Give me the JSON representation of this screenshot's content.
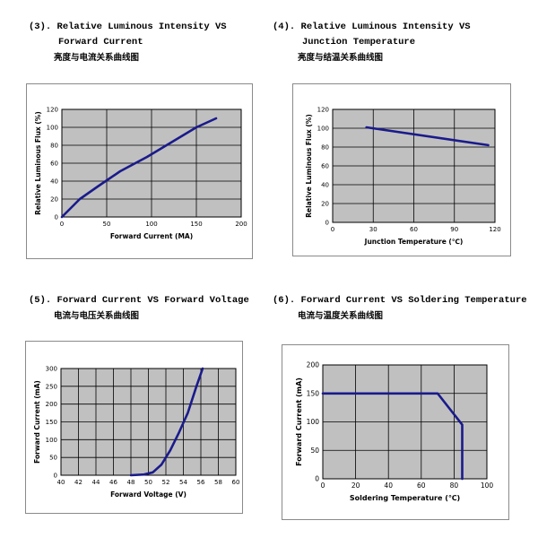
{
  "charts_meta": [
    {
      "number": "(3)",
      "title_line1": "Relative Luminous Intensity VS",
      "title_line2": "Forward Current",
      "title_cn": "亮度与电流关系曲线图"
    },
    {
      "number": "(4)",
      "title_line1": "Relative Luminous Intensity VS",
      "title_line2": "Junction Temperature",
      "title_cn": "亮度与结温关系曲线图"
    },
    {
      "number": "(5)",
      "title_line1": "Forward Current VS Forward Voltage",
      "title_cn": "电流与电压关系曲线图"
    },
    {
      "number": "(6)",
      "title_line1": "Forward Current VS Soldering Temperature",
      "title_cn": "电流与温度关系曲线图"
    }
  ],
  "colors": {
    "plot_bg": "#c0c0c0",
    "line": "#1a1a8c",
    "grid": "#000000"
  },
  "chart_data": [
    {
      "type": "line",
      "title": "Relative Luminous Intensity VS Forward Current",
      "xlabel": "Forward Current (MA)",
      "ylabel": "Relative Luminous Flux (%)",
      "xlim": [
        0,
        200
      ],
      "ylim": [
        0,
        120
      ],
      "xticks": [
        0,
        50,
        100,
        150,
        200
      ],
      "yticks": [
        0,
        20,
        40,
        60,
        80,
        100,
        120
      ],
      "x": [
        0,
        20,
        40,
        65,
        95,
        125,
        150,
        172
      ],
      "y": [
        0,
        20,
        34,
        51,
        67,
        85,
        100,
        110
      ]
    },
    {
      "type": "line",
      "title": "Relative Luminous Intensity VS Junction Temperature",
      "xlabel": "Junction Temperature (℃)",
      "ylabel": "Relative Luminous Flux (%)",
      "xlim": [
        0,
        120
      ],
      "ylim": [
        0,
        120
      ],
      "xticks": [
        0,
        30,
        60,
        90,
        120
      ],
      "xtick_labels": [
        "0",
        "30",
        "60",
        "90",
        "120"
      ],
      "yticks": [
        0,
        20,
        40,
        60,
        80,
        100,
        120
      ],
      "x": [
        25,
        115
      ],
      "y": [
        101,
        82
      ]
    },
    {
      "type": "line",
      "title": "Forward Current VS Forward Voltage",
      "xlabel": "Forward Voltage (V)",
      "ylabel": "Forward Current (mA)",
      "xlim": [
        40,
        60
      ],
      "ylim": [
        0,
        300
      ],
      "xticks": [
        40,
        42,
        44,
        46,
        48,
        50,
        52,
        54,
        56,
        58,
        60
      ],
      "yticks": [
        0,
        50,
        100,
        150,
        200,
        250,
        300
      ],
      "x": [
        48,
        49.5,
        50.5,
        51.5,
        52.5,
        53.5,
        54.5,
        55.5,
        56.2
      ],
      "y": [
        0,
        2,
        8,
        30,
        70,
        120,
        175,
        250,
        300
      ]
    },
    {
      "type": "line",
      "title": "Forward Current VS Soldering Temperature",
      "xlabel": "Soldering Temperature (℃)",
      "ylabel": "Forward Current (mA)",
      "xlim": [
        0,
        100
      ],
      "ylim": [
        0,
        200
      ],
      "xticks": [
        0,
        20,
        40,
        60,
        80,
        100
      ],
      "yticks": [
        0,
        50,
        100,
        150,
        200
      ],
      "x": [
        0,
        70,
        85,
        85
      ],
      "y": [
        150,
        150,
        95,
        0
      ]
    }
  ]
}
